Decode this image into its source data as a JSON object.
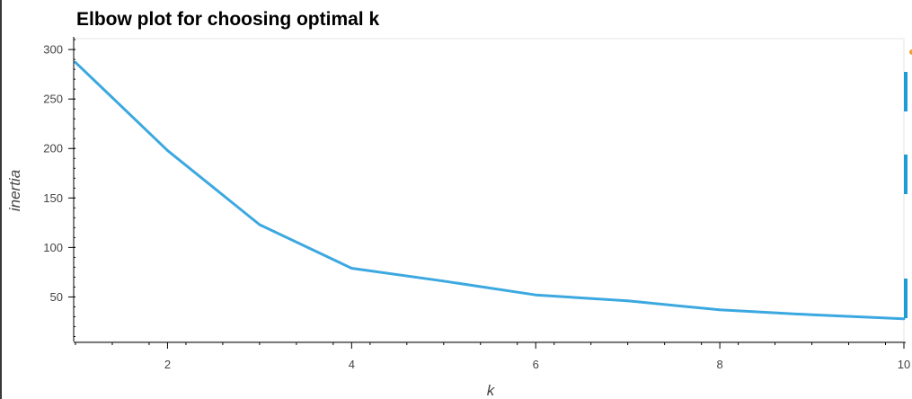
{
  "chart_data": {
    "type": "line",
    "title": "Elbow plot for choosing optimal k",
    "xlabel": "k",
    "ylabel": "inertia",
    "x": [
      1,
      2,
      3,
      4,
      5,
      6,
      7,
      8,
      9,
      10
    ],
    "series": [
      {
        "values": [
          287,
          198,
          123,
          79,
          66,
          52,
          46,
          37,
          32,
          28
        ],
        "color": "#3ca8e0"
      }
    ],
    "xlim": [
      1,
      10
    ],
    "ylim": [
      5,
      311
    ],
    "xticks": [
      2,
      4,
      6,
      8,
      10
    ],
    "yticks": [
      50,
      100,
      150,
      200,
      250,
      300
    ],
    "grid": false
  },
  "toolbar": {
    "accent_color": "#1f9bd6",
    "icons": [
      "bokeh-logo-icon",
      "pan-tool-icon",
      "zoom-tool-icon",
      "reset-tool-icon"
    ]
  }
}
